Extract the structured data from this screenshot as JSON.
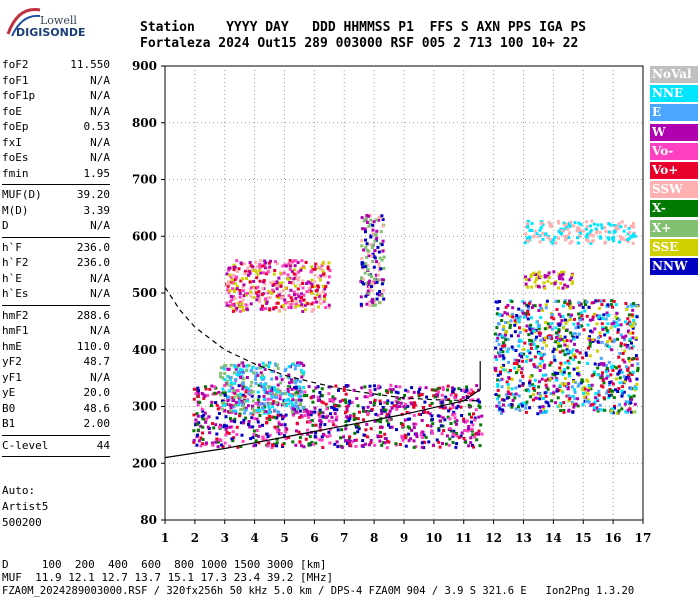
{
  "logo": {
    "line1": "Lowell",
    "line2": "DIGISONDE"
  },
  "header": {
    "line1": "Station    YYYY DAY   DDD HHMMSS P1  FFS S AXN PPS IGA PS",
    "line2": "Fortaleza 2024 Out15 289 003000 RSF 005 2 713 100 10+ 22"
  },
  "params": [
    [
      {
        "k": "foF2",
        "v": "11.550"
      },
      {
        "k": "foF1",
        "v": "N/A"
      },
      {
        "k": "foF1p",
        "v": "N/A"
      },
      {
        "k": "foE",
        "v": "N/A"
      },
      {
        "k": "foEp",
        "v": "0.53"
      },
      {
        "k": "fxI",
        "v": "N/A"
      },
      {
        "k": "foEs",
        "v": "N/A"
      },
      {
        "k": "fmin",
        "v": "1.95"
      }
    ],
    [
      {
        "k": "MUF(D)",
        "v": "39.20"
      },
      {
        "k": "M(D)",
        "v": "3.39"
      },
      {
        "k": "D",
        "v": "N/A"
      }
    ],
    [
      {
        "k": "h`F",
        "v": "236.0"
      },
      {
        "k": "h`F2",
        "v": "236.0"
      },
      {
        "k": "h`E",
        "v": "N/A"
      },
      {
        "k": "h`Es",
        "v": "N/A"
      }
    ],
    [
      {
        "k": "hmF2",
        "v": "288.6"
      },
      {
        "k": "hmF1",
        "v": "N/A"
      },
      {
        "k": "hmE",
        "v": "110.0"
      },
      {
        "k": "yF2",
        "v": "48.7"
      },
      {
        "k": "yF1",
        "v": "N/A"
      },
      {
        "k": "yE",
        "v": "20.0"
      },
      {
        "k": "B0",
        "v": "48.6"
      },
      {
        "k": "B1",
        "v": "2.00"
      }
    ],
    [
      {
        "k": "C-level",
        "v": "44"
      }
    ]
  ],
  "auto": {
    "l1": "Auto:",
    "l2": "Artist5",
    "l3": "500200"
  },
  "bottom": {
    "d": "D     100  200  400  600  800 1000 1500 3000 [km]",
    "muf": "MUF  11.9 12.1 12.7 13.7 15.1 17.3 23.4 39.2 [MHz]",
    "footer": "FZA0M_2024289003000.RSF / 320fx256h 50 kHz 5.0 km / DPS-4 FZA0M 904 / 3.9 S 321.6 E   Ion2Png 1.3.20"
  },
  "legend": [
    {
      "label": "NoVal",
      "bg": "#c0c0c0",
      "fg": "#ffffff"
    },
    {
      "label": "NNE",
      "bg": "#00e5ff",
      "fg": "#ffffff"
    },
    {
      "label": "E",
      "bg": "#4aa6ff",
      "fg": "#ffffff"
    },
    {
      "label": "W",
      "bg": "#b000b0",
      "fg": "#ffffff"
    },
    {
      "label": "Vo-",
      "bg": "#ff40c0",
      "fg": "#ffffff"
    },
    {
      "label": "Vo+",
      "bg": "#e8002a",
      "fg": "#ffffff"
    },
    {
      "label": "SSW",
      "bg": "#ffb0b0",
      "fg": "#ffffff"
    },
    {
      "label": "X-",
      "bg": "#007a00",
      "fg": "#ffffff"
    },
    {
      "label": "X+",
      "bg": "#80c070",
      "fg": "#ffffff"
    },
    {
      "label": "SSE",
      "bg": "#d0d000",
      "fg": "#ffffff"
    },
    {
      "label": "NNW",
      "bg": "#0000c0",
      "fg": "#ffffff"
    }
  ],
  "chart_data": {
    "type": "scatter",
    "x_ticks": [
      1,
      2,
      3,
      4,
      5,
      6,
      7,
      8,
      9,
      10,
      11,
      12,
      13,
      14,
      15,
      16,
      17
    ],
    "y_ticks": [
      80,
      200,
      300,
      400,
      500,
      600,
      700,
      800,
      900
    ],
    "xlim": [
      1,
      17
    ],
    "y_scale": "ionogram height (km)",
    "grid": true,
    "legend_position": "right",
    "solid_profile": [
      [
        1,
        210
      ],
      [
        2,
        218
      ],
      [
        3,
        226
      ],
      [
        4,
        236
      ],
      [
        5,
        246
      ],
      [
        6,
        256
      ],
      [
        7,
        266
      ],
      [
        8,
        276
      ],
      [
        9,
        286
      ],
      [
        10,
        298
      ],
      [
        11,
        310
      ],
      [
        11.55,
        330
      ],
      [
        11.55,
        380
      ]
    ],
    "dashed_profile": [
      [
        1,
        510
      ],
      [
        1.5,
        470
      ],
      [
        2,
        440
      ],
      [
        3,
        400
      ],
      [
        4,
        375
      ],
      [
        5,
        355
      ],
      [
        6,
        342
      ],
      [
        7,
        330
      ],
      [
        8,
        322
      ],
      [
        9,
        315
      ],
      [
        10,
        312
      ],
      [
        11.5,
        310
      ]
    ],
    "echo_clusters": [
      {
        "x": [
          1.9,
          11.6
        ],
        "y": [
          230,
          340
        ],
        "colors": [
          "#e8002a",
          "#ff40c0",
          "#007a00",
          "#b000b0",
          "#0000c0"
        ]
      },
      {
        "x": [
          2.8,
          5.6
        ],
        "y": [
          290,
          380
        ],
        "colors": [
          "#4aa6ff",
          "#b000b0",
          "#80c070",
          "#00e5ff"
        ]
      },
      {
        "x": [
          3,
          6.5
        ],
        "y": [
          470,
          560
        ],
        "colors": [
          "#e8002a",
          "#b000b0",
          "#d0d000",
          "#ffb0b0",
          "#ff40c0"
        ]
      },
      {
        "x": [
          7.5,
          8.3
        ],
        "y": [
          480,
          640
        ],
        "colors": [
          "#80c070",
          "#ffb0b0",
          "#0000c0",
          "#b000b0"
        ]
      },
      {
        "x": [
          12,
          16.8
        ],
        "y": [
          290,
          490
        ],
        "colors": [
          "#e8002a",
          "#b000b0",
          "#00e5ff",
          "#4aa6ff",
          "#0000c0",
          "#d0d000",
          "#007a00"
        ]
      },
      {
        "x": [
          13,
          16.7
        ],
        "y": [
          590,
          630
        ],
        "colors": [
          "#ffb0b0",
          "#00e5ff"
        ]
      },
      {
        "x": [
          13,
          14.6
        ],
        "y": [
          510,
          540
        ],
        "colors": [
          "#d0d000",
          "#b000b0"
        ]
      }
    ]
  }
}
